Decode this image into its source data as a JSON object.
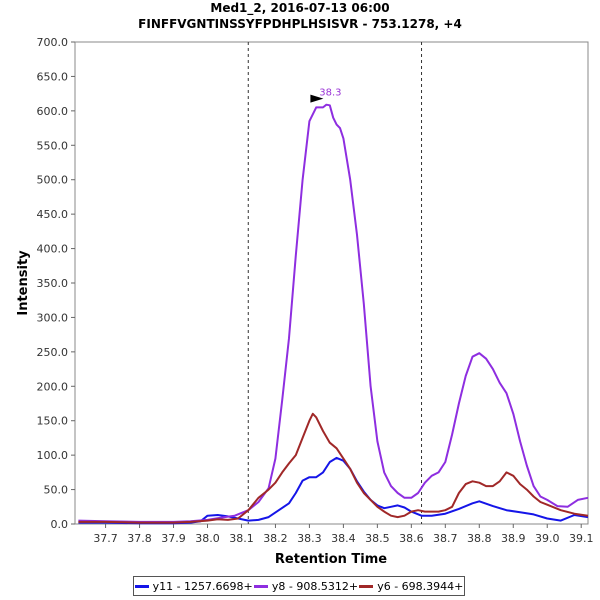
{
  "chart_data": {
    "type": "line",
    "title": "Med1_2, 2016-07-13 06:00",
    "subtitle": "FINFFVGNTINSSYFPDHPLHSISVR - 753.1278, +4",
    "xlabel": "Retention Time",
    "ylabel": "Intensity",
    "xlim": [
      37.61,
      39.12
    ],
    "ylim": [
      0,
      700
    ],
    "x_ticks": [
      "37.7",
      "37.8",
      "37.9",
      "38.0",
      "38.1",
      "38.2",
      "38.3",
      "38.4",
      "38.5",
      "38.6",
      "38.7",
      "38.8",
      "38.9",
      "39.0",
      "39.1"
    ],
    "y_ticks": [
      "0.0",
      "50.0",
      "100.0",
      "150.0",
      "200.0",
      "250.0",
      "300.0",
      "350.0",
      "400.0",
      "450.0",
      "500.0",
      "550.0",
      "600.0",
      "650.0",
      "700.0"
    ],
    "boundaries": [
      38.12,
      38.63
    ],
    "annotation": {
      "text": "38.3",
      "x": 38.35,
      "y": 609,
      "color": "#9a34d6"
    },
    "series": [
      {
        "name": "y11 - 1257.6698+",
        "color": "#1515e8",
        "x": [
          37.62,
          37.7,
          37.8,
          37.9,
          37.95,
          37.98,
          38.0,
          38.03,
          38.06,
          38.09,
          38.12,
          38.15,
          38.18,
          38.21,
          38.24,
          38.26,
          38.28,
          38.3,
          38.32,
          38.34,
          38.36,
          38.38,
          38.4,
          38.42,
          38.44,
          38.46,
          38.48,
          38.5,
          38.52,
          38.54,
          38.56,
          38.58,
          38.6,
          38.63,
          38.66,
          38.7,
          38.74,
          38.78,
          38.8,
          38.84,
          38.88,
          38.92,
          38.96,
          39.0,
          39.04,
          39.08,
          39.12
        ],
        "y": [
          2,
          2,
          1,
          1,
          2,
          4,
          12,
          13,
          11,
          8,
          5,
          6,
          10,
          20,
          30,
          45,
          63,
          68,
          68,
          75,
          90,
          96,
          92,
          80,
          62,
          47,
          35,
          27,
          23,
          25,
          27,
          24,
          18,
          12,
          12,
          15,
          22,
          30,
          33,
          26,
          20,
          17,
          14,
          8,
          5,
          13,
          10
        ]
      },
      {
        "name": "y8 - 908.5312+",
        "color": "#8e2ee0",
        "x": [
          37.62,
          37.7,
          37.8,
          37.9,
          37.95,
          38.0,
          38.05,
          38.08,
          38.12,
          38.15,
          38.18,
          38.2,
          38.22,
          38.24,
          38.26,
          38.28,
          38.3,
          38.32,
          38.34,
          38.35,
          38.36,
          38.37,
          38.38,
          38.39,
          38.4,
          38.42,
          38.44,
          38.46,
          38.48,
          38.5,
          38.52,
          38.54,
          38.56,
          38.58,
          38.6,
          38.62,
          38.64,
          38.66,
          38.68,
          38.7,
          38.72,
          38.74,
          38.76,
          38.78,
          38.8,
          38.82,
          38.84,
          38.86,
          38.88,
          38.9,
          38.92,
          38.94,
          38.96,
          38.98,
          39.0,
          39.03,
          39.06,
          39.09,
          39.12
        ],
        "y": [
          5,
          4,
          3,
          3,
          4,
          6,
          10,
          12,
          20,
          32,
          52,
          95,
          180,
          270,
          390,
          500,
          585,
          605,
          605,
          609,
          608,
          590,
          580,
          575,
          560,
          500,
          420,
          320,
          200,
          120,
          75,
          55,
          45,
          38,
          38,
          45,
          60,
          70,
          75,
          90,
          130,
          175,
          215,
          243,
          248,
          240,
          225,
          205,
          190,
          160,
          120,
          85,
          55,
          40,
          35,
          26,
          25,
          35,
          38
        ]
      },
      {
        "name": "y6 - 698.3944+",
        "color": "#a02828",
        "x": [
          37.62,
          37.7,
          37.8,
          37.9,
          37.95,
          38.0,
          38.03,
          38.06,
          38.09,
          38.12,
          38.15,
          38.18,
          38.2,
          38.22,
          38.24,
          38.26,
          38.28,
          38.3,
          38.31,
          38.32,
          38.34,
          38.36,
          38.38,
          38.4,
          38.42,
          38.44,
          38.46,
          38.48,
          38.5,
          38.52,
          38.54,
          38.56,
          38.58,
          38.6,
          38.62,
          38.64,
          38.66,
          38.68,
          38.7,
          38.72,
          38.74,
          38.76,
          38.78,
          38.8,
          38.82,
          38.84,
          38.86,
          38.88,
          38.9,
          38.92,
          38.94,
          38.96,
          38.98,
          39.0,
          39.04,
          39.08,
          39.12
        ],
        "y": [
          3,
          3,
          2,
          2,
          3,
          5,
          7,
          6,
          8,
          20,
          38,
          50,
          60,
          75,
          88,
          100,
          125,
          150,
          160,
          155,
          135,
          118,
          110,
          95,
          80,
          60,
          45,
          35,
          25,
          18,
          12,
          10,
          12,
          18,
          20,
          18,
          18,
          18,
          20,
          25,
          45,
          58,
          62,
          60,
          55,
          55,
          62,
          75,
          70,
          58,
          50,
          40,
          32,
          28,
          20,
          15,
          12
        ]
      }
    ]
  }
}
